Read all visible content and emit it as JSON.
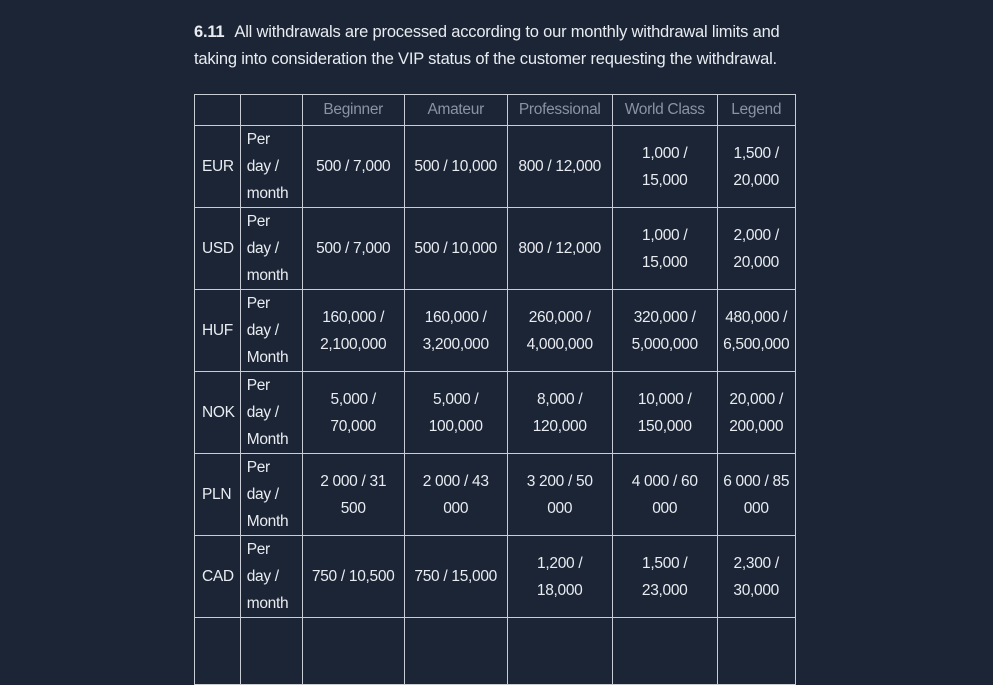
{
  "section": {
    "number": "6.11",
    "text": "All withdrawals are processed according to our monthly withdrawal limits and taking into consideration the VIP status of the customer requesting the withdrawal."
  },
  "table": {
    "headers": [
      "",
      "",
      "Beginner",
      "Amateur",
      "Professional",
      "World Class",
      "Legend"
    ],
    "rows": [
      {
        "currency": "EUR",
        "period": "Per day / month",
        "values": [
          "500 / 7,000",
          "500 / 10,000",
          "800 / 12,000",
          "1,000 / 15,000",
          "1,500 / 20,000"
        ]
      },
      {
        "currency": "USD",
        "period": "Per day / month",
        "values": [
          "500 / 7,000",
          "500 / 10,000",
          "800 / 12,000",
          "1,000 / 15,000",
          "2,000 / 20,000"
        ]
      },
      {
        "currency": "HUF",
        "period": "Per day / Month",
        "values": [
          "160,000 / 2,100,000",
          "160,000 / 3,200,000",
          "260,000 / 4,000,000",
          "320,000 / 5,000,000",
          "480,000 / 6,500,000"
        ]
      },
      {
        "currency": "NOK",
        "period": "Per day / Month",
        "values": [
          "5,000 / 70,000",
          "5,000 / 100,000",
          "8,000 / 120,000",
          "10,000 / 150,000",
          "20,000 / 200,000"
        ]
      },
      {
        "currency": "PLN",
        "period": "Per day / Month",
        "values": [
          "2 000 / 31 500",
          "2 000 / 43 000",
          "3 200 / 50 000",
          "4 000 / 60 000",
          "6 000 / 85 000"
        ]
      },
      {
        "currency": "CAD",
        "period": "Per day / month",
        "values": [
          "750 / 10,500",
          "750 / 15,000",
          "1,200 / 18,000",
          "1,500 / 23,000",
          "2,300 / 30,000"
        ]
      }
    ]
  }
}
